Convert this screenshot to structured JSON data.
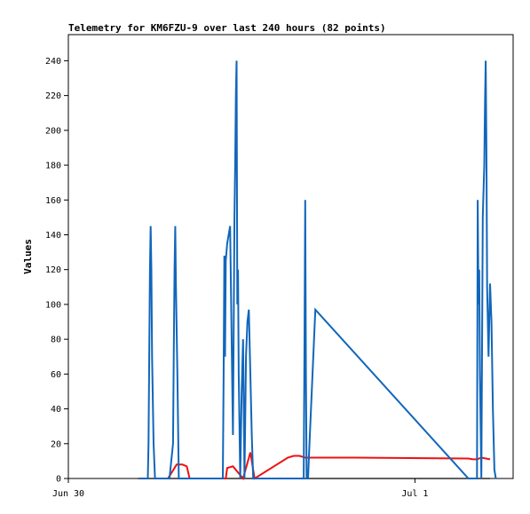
{
  "chart_data": {
    "type": "line",
    "title": "Telemetry for KM6FZU-9 over last 240 hours (82 points)",
    "ylabel": "Values",
    "xlabel": "",
    "x_tick_labels": [
      {
        "label": "Jun 30",
        "x": 0
      },
      {
        "label": "Jul 1",
        "x": 24
      }
    ],
    "xlim": [
      0,
      30.8
    ],
    "ylim": [
      0,
      255
    ],
    "y_ticks": [
      0,
      20,
      40,
      60,
      80,
      100,
      120,
      140,
      160,
      180,
      200,
      220,
      240
    ],
    "grid": false,
    "series": [
      {
        "color": "#000000",
        "x": [
          4.8,
          29.2
        ],
        "values": [
          0,
          0
        ]
      },
      {
        "color": "#ee1111",
        "x": [
          6.9,
          7.5,
          7.9,
          8.2,
          8.4,
          8.6,
          10.9,
          11.0,
          11.4,
          12.1,
          12.6,
          12.9,
          15.2,
          15.6,
          16.0,
          16.4,
          19.8,
          27.7,
          28.0,
          28.3,
          28.6,
          29.2
        ],
        "values": [
          0,
          8,
          8,
          7,
          0,
          0,
          0,
          6,
          7,
          0,
          15,
          0,
          12,
          13,
          13,
          12,
          12,
          11.5,
          11,
          11,
          12,
          11
        ]
      },
      {
        "color": "#1166bb",
        "x": [
          5.0,
          5.5,
          5.55,
          5.6,
          5.65,
          5.7,
          5.75,
          5.8,
          5.9,
          6.0,
          7.0,
          7.25,
          7.3,
          7.35,
          7.4,
          7.45,
          7.55,
          7.65,
          7.8,
          10.0,
          10.7,
          10.75,
          10.8,
          10.85,
          10.9,
          11.0,
          11.2,
          11.4,
          11.5,
          11.55,
          11.6,
          11.65,
          11.7,
          11.75,
          11.8,
          11.9,
          12.0,
          12.1,
          12.2,
          12.3,
          12.4,
          12.5,
          12.6,
          12.7,
          12.8,
          12.9,
          13.3,
          16.3,
          16.35,
          16.4,
          16.45,
          16.5,
          16.6,
          16.7,
          17.1,
          27.7,
          28.3,
          28.35,
          28.4,
          28.45,
          28.5,
          28.6,
          28.7,
          28.8,
          28.85,
          28.9,
          28.95,
          29.0,
          29.1,
          29.2,
          29.3,
          29.4,
          29.5,
          29.6
        ],
        "values": [
          0,
          0,
          20,
          70,
          120,
          145,
          120,
          70,
          20,
          0,
          0,
          20,
          70,
          120,
          145,
          110,
          60,
          0,
          0,
          0,
          0,
          60,
          128,
          70,
          125,
          135,
          145,
          25,
          150,
          180,
          220,
          240,
          100,
          120,
          60,
          0,
          50,
          80,
          0,
          70,
          90,
          97,
          60,
          25,
          0,
          0,
          0,
          0,
          80,
          160,
          60,
          0,
          0,
          20,
          97,
          0,
          0,
          160,
          100,
          120,
          60,
          0,
          150,
          180,
          215,
          240,
          190,
          110,
          70,
          112,
          90,
          40,
          5,
          0
        ]
      }
    ]
  }
}
